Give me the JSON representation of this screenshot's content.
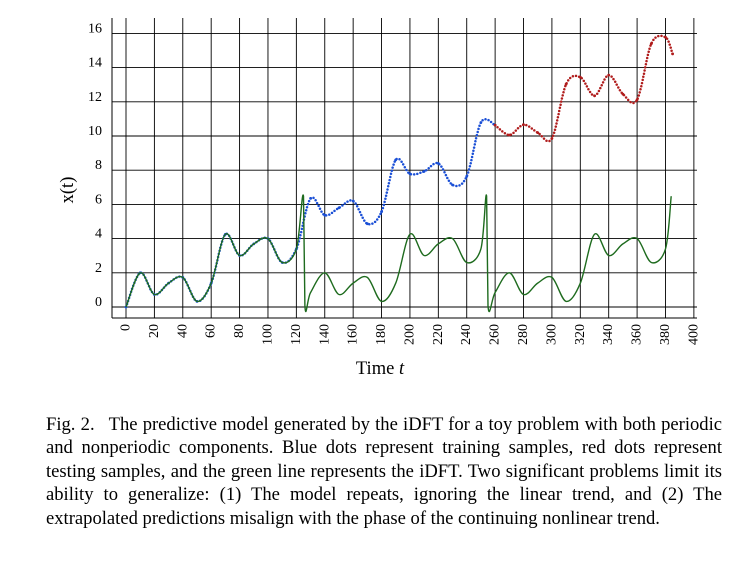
{
  "chart_data": {
    "type": "line",
    "title": "",
    "xlabel_prefix": "Time ",
    "xlabel_var": "t",
    "ylabel": "x(t)",
    "xlim": [
      0,
      400
    ],
    "ylim": [
      -0.5,
      17
    ],
    "xticks": [
      0,
      20,
      40,
      60,
      80,
      100,
      120,
      140,
      160,
      180,
      200,
      220,
      240,
      260,
      280,
      300,
      320,
      340,
      360,
      380,
      400
    ],
    "yticks": [
      0,
      2,
      4,
      6,
      8,
      10,
      12,
      14,
      16
    ],
    "grid": true,
    "colors": {
      "training": "#1a4fd6",
      "testing": "#b01c1c",
      "idft": "#1e6b1e",
      "grid": "#000000"
    },
    "series": [
      {
        "name": "training",
        "style": "dots",
        "x": [
          0,
          10,
          20,
          30,
          40,
          50,
          60,
          70,
          80,
          90,
          100,
          110,
          120,
          130,
          140,
          150,
          160,
          170,
          180,
          190,
          200,
          210,
          220,
          230,
          240,
          250,
          260
        ],
        "y": [
          0.0,
          2.0,
          0.73,
          1.4,
          1.73,
          0.33,
          1.39,
          4.25,
          3.01,
          3.69,
          4.0,
          2.6,
          3.4,
          6.35,
          5.37,
          5.8,
          6.2,
          4.87,
          5.57,
          8.6,
          7.79,
          7.93,
          8.4,
          7.14,
          7.64,
          10.79,
          10.64
        ]
      },
      {
        "name": "testing",
        "style": "dots",
        "x": [
          260,
          270,
          280,
          290,
          300,
          310,
          320,
          330,
          340,
          350,
          360,
          370,
          380,
          385
        ],
        "y": [
          10.64,
          10.06,
          10.66,
          10.2,
          9.86,
          13.03,
          13.44,
          12.35,
          13.56,
          12.45,
          12.12,
          15.4,
          15.77,
          14.8
        ]
      },
      {
        "name": "idft",
        "style": "line",
        "x": [
          0,
          10,
          20,
          30,
          40,
          50,
          60,
          70,
          80,
          90,
          100,
          110,
          120,
          125,
          126,
          130,
          140,
          150,
          160,
          170,
          180,
          190,
          200,
          210,
          220,
          230,
          240,
          250,
          254,
          255,
          260,
          270,
          280,
          290,
          300,
          310,
          320,
          330,
          340,
          350,
          360,
          370,
          380,
          384
        ],
        "y": [
          0.0,
          2.0,
          0.73,
          1.4,
          1.73,
          0.33,
          1.39,
          4.25,
          3.01,
          3.69,
          4.0,
          2.6,
          3.4,
          6.48,
          0.05,
          0.85,
          2.0,
          0.73,
          1.4,
          1.73,
          0.33,
          1.39,
          4.25,
          3.01,
          3.69,
          4.0,
          2.6,
          3.4,
          6.48,
          0.05,
          0.85,
          2.0,
          0.73,
          1.4,
          1.73,
          0.33,
          1.39,
          4.25,
          3.01,
          3.69,
          4.0,
          2.6,
          3.4,
          6.48
        ]
      }
    ]
  },
  "caption": {
    "label": "Fig. 2.",
    "text": "The predictive model generated by the iDFT for a toy problem with both periodic and nonperiodic components. Blue dots represent training samples, red dots represent testing samples, and the green line represents the iDFT. Two significant problems limit its ability to generalize: (1) The model repeats, ignoring the linear trend, and (2) The extrapolated predictions misalign with the phase of the continuing nonlinear trend."
  }
}
